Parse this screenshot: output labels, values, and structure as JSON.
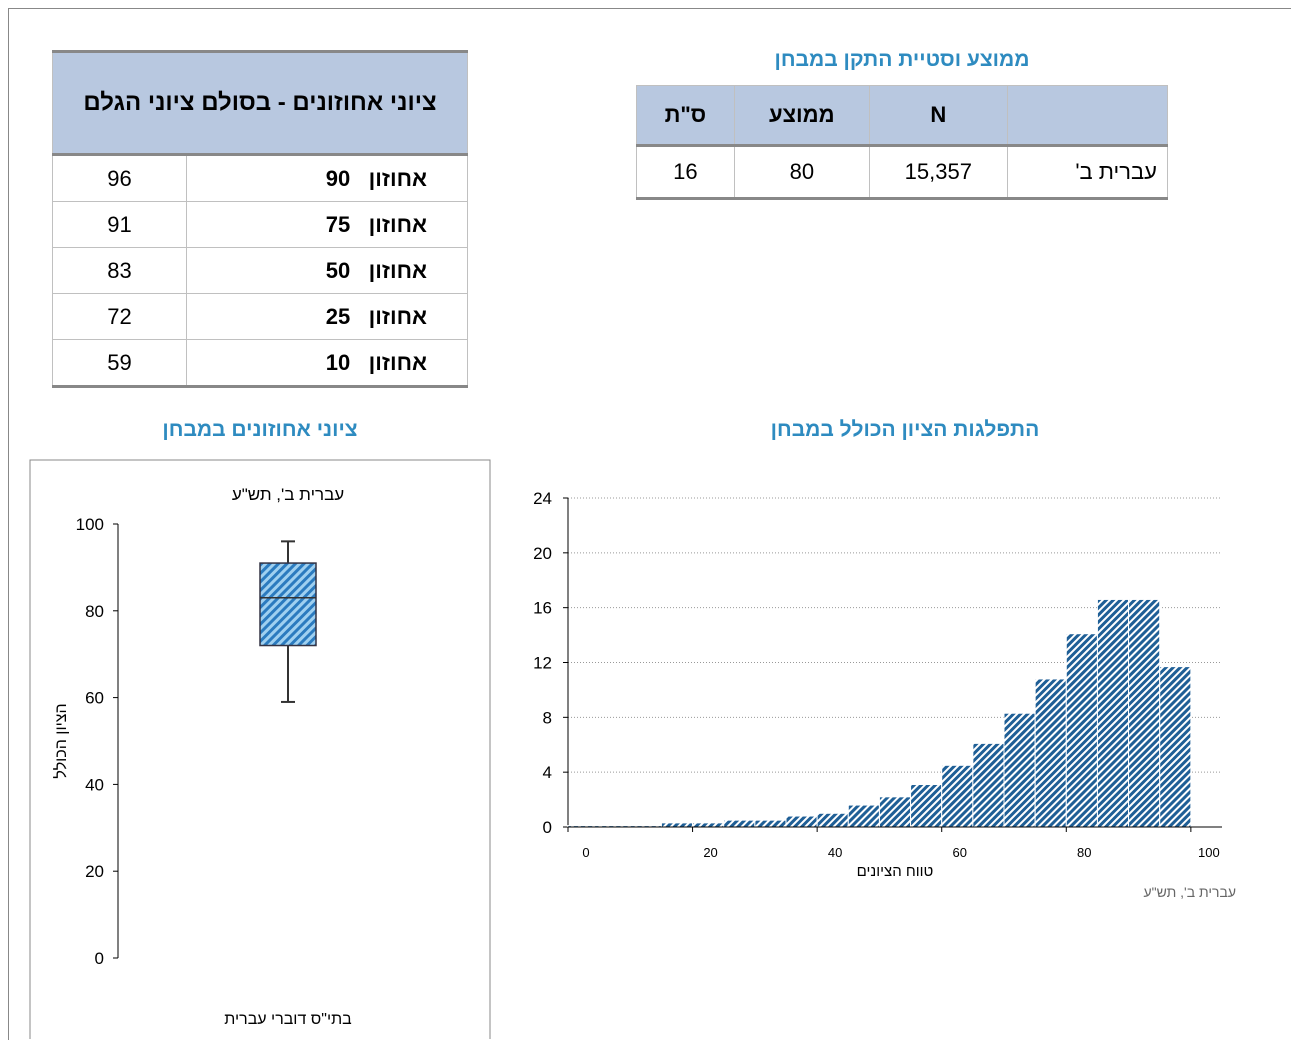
{
  "stats_table": {
    "title": "ממוצע וסטיית התקן במבחן",
    "header": [
      "",
      "N",
      "ממוצע",
      "ס\"ת"
    ],
    "rows": [
      [
        "עברית ב'",
        "15,357",
        "80",
        "16"
      ]
    ]
  },
  "percentile_table": {
    "header": "ציוני אחוזונים - בסולם ציוני הגלם",
    "rows": [
      [
        "אחוזון",
        "90",
        "96"
      ],
      [
        "אחוזון",
        "75",
        "91"
      ],
      [
        "אחוזון",
        "50",
        "83"
      ],
      [
        "אחוזון",
        "25",
        "72"
      ],
      [
        "אחוזון",
        "10",
        "59"
      ]
    ]
  },
  "chart_data": [
    {
      "type": "box",
      "heading": "ציוני אחוזונים במבחן",
      "title": "עברית ב', תש\"ע",
      "y_label": "הציון הכולל",
      "categories": [
        "בתי\"ס דוברי עברית"
      ],
      "boxes": [
        {
          "whisker_low": 59,
          "q1": 72,
          "median": 83,
          "q3": 91,
          "whisker_high": 96
        }
      ],
      "color": "#2b7bbf",
      "ylim": [
        0,
        100
      ],
      "yticks": [
        0,
        20,
        40,
        60,
        80,
        100
      ]
    },
    {
      "type": "histogram",
      "heading": "התפלגות הציון הכולל במבחן",
      "x_label": "טווח הציונים",
      "note": "עברית ב',     תש\"ע",
      "bins": [
        0,
        5,
        10,
        15,
        20,
        25,
        30,
        35,
        40,
        45,
        50,
        55,
        60,
        65,
        70,
        75,
        80,
        85,
        90,
        95,
        100
      ],
      "values": [
        0.1,
        0.1,
        0.1,
        0.3,
        0.3,
        0.5,
        0.5,
        0.8,
        1.0,
        1.6,
        2.2,
        3.1,
        4.5,
        6.1,
        8.3,
        10.8,
        14.1,
        16.6,
        16.6,
        11.7
      ],
      "color": "#1f5f96",
      "xlim": [
        0,
        105
      ],
      "xticks": [
        0,
        20,
        40,
        60,
        80,
        100
      ],
      "ylim": [
        0,
        24
      ],
      "yticks": [
        0,
        4,
        8,
        12,
        16,
        20,
        24
      ],
      "grid": true
    }
  ]
}
